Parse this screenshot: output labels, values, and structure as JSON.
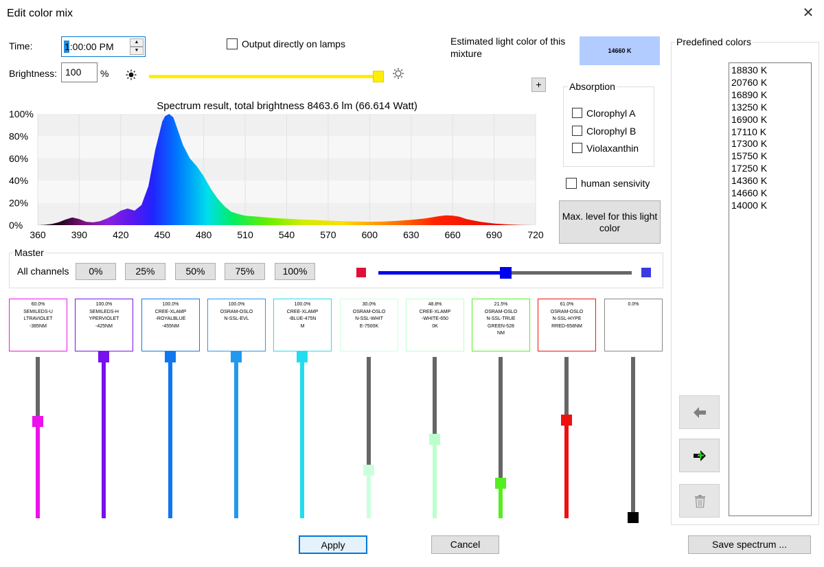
{
  "window": {
    "title": "Edit color mix",
    "close_glyph": "✕"
  },
  "time": {
    "label": "Time:",
    "value": "1:00:00 PM"
  },
  "output_lamps": {
    "label": "Output directly on lamps",
    "checked": false
  },
  "estimate": {
    "label_line1": "Estimated light color of this",
    "label_line2": "mixture",
    "value": "14660 K",
    "swatch_color": "#b3ccff"
  },
  "brightness": {
    "label": "Brightness:",
    "value": "100",
    "unit": "%",
    "level": 1.0,
    "dim_icon": "sun-small-icon",
    "bright_icon": "sun-large-icon"
  },
  "plus_button": {
    "label": "+"
  },
  "absorption": {
    "title": "Absorption",
    "items": [
      {
        "label": "Clorophyl A",
        "checked": false
      },
      {
        "label": "Clorophyl B",
        "checked": false
      },
      {
        "label": "Violaxanthin",
        "checked": false
      }
    ]
  },
  "human_sensivity": {
    "label": "human sensivity",
    "checked": false
  },
  "max_level_button": {
    "line1": "Max. level for this light",
    "line2": "color"
  },
  "chart_data": {
    "type": "area",
    "title": "Spectrum result, total brightness 8463.6 lm (66.614 Watt)",
    "xlabel": "",
    "ylabel": "",
    "xlim": [
      360,
      720
    ],
    "ylim": [
      0,
      100
    ],
    "x_ticks": [
      360,
      390,
      420,
      450,
      480,
      510,
      540,
      570,
      600,
      630,
      660,
      690,
      720
    ],
    "y_ticks": [
      "100%",
      "80%",
      "60%",
      "40%",
      "20%",
      "0%"
    ],
    "grid": true,
    "series": [
      {
        "x": [
          360,
          365,
          370,
          375,
          380,
          385,
          390,
          395,
          400,
          405,
          410,
          415,
          420,
          425,
          430,
          435,
          440,
          445,
          450,
          452,
          455,
          458,
          460,
          465,
          470,
          475,
          480,
          485,
          490,
          495,
          500,
          505,
          510,
          520,
          530,
          540,
          550,
          560,
          570,
          580,
          590,
          600,
          610,
          620,
          630,
          640,
          650,
          655,
          660,
          665,
          670,
          680,
          690,
          700,
          710,
          720
        ],
        "y": [
          0,
          0.3,
          1,
          2.5,
          5,
          7,
          5.5,
          3,
          2.5,
          3.5,
          6,
          9,
          13,
          15,
          13,
          18,
          35,
          68,
          93,
          98,
          100,
          97,
          90,
          72,
          60,
          53,
          44,
          33,
          24,
          17,
          12,
          10,
          8.5,
          7.5,
          6.5,
          5.8,
          5.2,
          4.6,
          4,
          3.6,
          3.2,
          3,
          3.2,
          3.8,
          4.8,
          6,
          8,
          8.8,
          8.6,
          7.5,
          5.5,
          3,
          1.5,
          0.6,
          0.2,
          0
        ]
      }
    ]
  },
  "master": {
    "title": "Master",
    "all_channels_label": "All channels",
    "presets": [
      "0%",
      "25%",
      "50%",
      "75%",
      "100%"
    ],
    "level": 0.5,
    "left_color": "#e0103a",
    "right_color": "#3a3ae0"
  },
  "channels": [
    {
      "percent": "60.0%",
      "l1": "SEMILEDS-U",
      "l2": "LTRAVIOLET",
      "l3": "-385NM",
      "l4": "",
      "color": "#ee11ee",
      "level": 0.6
    },
    {
      "percent": "100.0%",
      "l1": "SEMILEDS-H",
      "l2": "YPERVIOLET",
      "l3": "-425NM",
      "l4": "",
      "color": "#7711ee",
      "level": 1.0
    },
    {
      "percent": "100.0%",
      "l1": "CREE-XLAMP",
      "l2": "-ROYALBLUE",
      "l3": "-455NM",
      "l4": "",
      "color": "#1177ee",
      "level": 1.0
    },
    {
      "percent": "100.0%",
      "l1": "OSRAM-OSLO",
      "l2": "N-SSL-EVL",
      "l3": "",
      "l4": "",
      "color": "#2299ee",
      "level": 1.0
    },
    {
      "percent": "100.0%",
      "l1": "CREE-XLAMP",
      "l2": "-BLUE-475N",
      "l3": "M",
      "l4": "",
      "color": "#22ddee",
      "level": 1.0
    },
    {
      "percent": "30.0%",
      "l1": "OSRAM-OSLO",
      "l2": "N-SSL-WHIT",
      "l3": "E-7500K",
      "l4": "",
      "color": "#ccffdd",
      "level": 0.3
    },
    {
      "percent": "48.8%",
      "l1": "CREE-XLAMP",
      "l2": "-WHITE-650",
      "l3": "0K",
      "l4": "",
      "color": "#bbffcc",
      "level": 0.488
    },
    {
      "percent": "21.5%",
      "l1": "OSRAM-OSLO",
      "l2": "N-SSL-TRUE",
      "l3": "GREEN-528",
      "l4": "NM",
      "color": "#55ee22",
      "level": 0.215
    },
    {
      "percent": "61.0%",
      "l1": "OSRAM-OSLO",
      "l2": "N-SSL-HYPE",
      "l3": "RRED-658NM",
      "l4": "",
      "color": "#ee1111",
      "level": 0.61
    },
    {
      "percent": "0.0%",
      "l1": "",
      "l2": "",
      "l3": "",
      "l4": "",
      "color": "#000000",
      "level": 0.0
    }
  ],
  "predefined": {
    "title": "Predefined colors",
    "items": [
      "18830 K",
      "20760 K",
      "16890 K",
      "13250 K",
      "16900 K",
      "17110 K",
      "17300 K",
      "15750 K",
      "17250 K",
      "14360 K",
      "14660 K",
      "14000 K"
    ],
    "load_icon": "arrow-left-icon",
    "add_icon": "arrow-right-plus-icon",
    "delete_icon": "trash-icon"
  },
  "buttons": {
    "apply": "Apply",
    "cancel": "Cancel",
    "save_spectrum": "Save spectrum ..."
  }
}
